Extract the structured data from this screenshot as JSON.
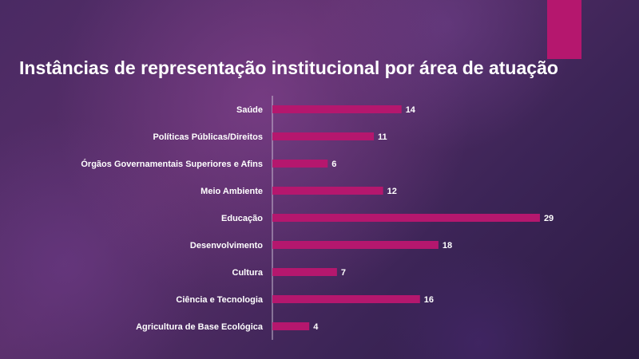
{
  "title": "Instâncias de representação institucional por área de atuação",
  "colors": {
    "bar": "#b5176e",
    "accent": "#b5176e",
    "axis": "#c8bcd2",
    "text": "#ffffff"
  },
  "chart_data": {
    "type": "bar",
    "orientation": "horizontal",
    "title": "Instâncias de representação institucional por área de atuação",
    "categories": [
      "Saúde",
      "Políticas Públicas/Direitos",
      "Órgãos Governamentais Superiores e Afins",
      "Meio Ambiente",
      "Educação",
      "Desenvolvimento",
      "Cultura",
      "Ciência e Tecnologia",
      "Agricultura de Base Ecológica"
    ],
    "values": [
      14,
      11,
      6,
      12,
      29,
      18,
      7,
      16,
      4
    ],
    "data_labels": true,
    "grid": false,
    "legend": "none"
  }
}
